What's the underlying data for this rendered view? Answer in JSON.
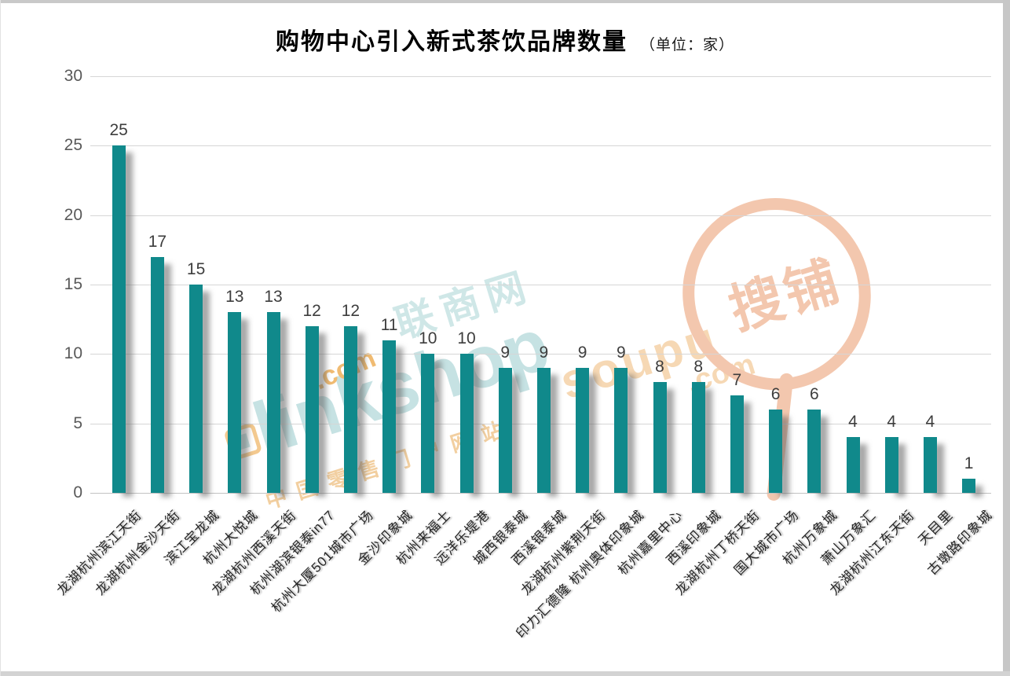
{
  "title": {
    "text": "购物中心引入新式茶饮品牌数量",
    "unit": "（单位：家）"
  },
  "watermarks": {
    "linkshop": {
      "main": "linkshop",
      "dotcom": ".com",
      "cn": "联商网",
      "slogan": "中国零售门户网站",
      "color_teal": "#c6e2e3",
      "color_orange": "#f0bb72"
    },
    "soupu": {
      "main": "soupu",
      "dotcom": ".com",
      "cn": "搜铺",
      "color_text": "#f6d8b4",
      "color_cn": "#f3c7ae"
    }
  },
  "chart_data": {
    "type": "bar",
    "title": "购物中心引入新式茶饮品牌数量",
    "unit_label": "（单位：家）",
    "categories": [
      "龙湖杭州滨江天街",
      "龙湖杭州金沙天街",
      "滨江宝龙城",
      "杭州大悦城",
      "龙湖杭州西溪天街",
      "杭州湖滨银泰in77",
      "杭州大厦501城市广场",
      "金沙印象城",
      "杭州来福士",
      "远洋乐堤港",
      "城西银泰城",
      "西溪银泰城",
      "龙湖杭州紫荆天街",
      "印力汇德隆 杭州奥体印象城",
      "杭州嘉里中心",
      "西溪印象城",
      "龙湖杭州丁桥天街",
      "国大城市广场",
      "杭州万象城",
      "萧山万象汇",
      "龙湖杭州江东天街",
      "天目里",
      "古墩路印象城"
    ],
    "values": [
      25,
      17,
      15,
      13,
      13,
      12,
      12,
      11,
      10,
      10,
      9,
      9,
      9,
      9,
      8,
      8,
      7,
      6,
      6,
      4,
      4,
      4,
      1
    ],
    "bar_color": "#10898b",
    "xlabel": "",
    "ylabel": "",
    "ylim": [
      0,
      30
    ],
    "yticks": [
      0,
      5,
      10,
      15,
      20,
      25,
      30
    ],
    "grid": true,
    "legend": "none"
  }
}
